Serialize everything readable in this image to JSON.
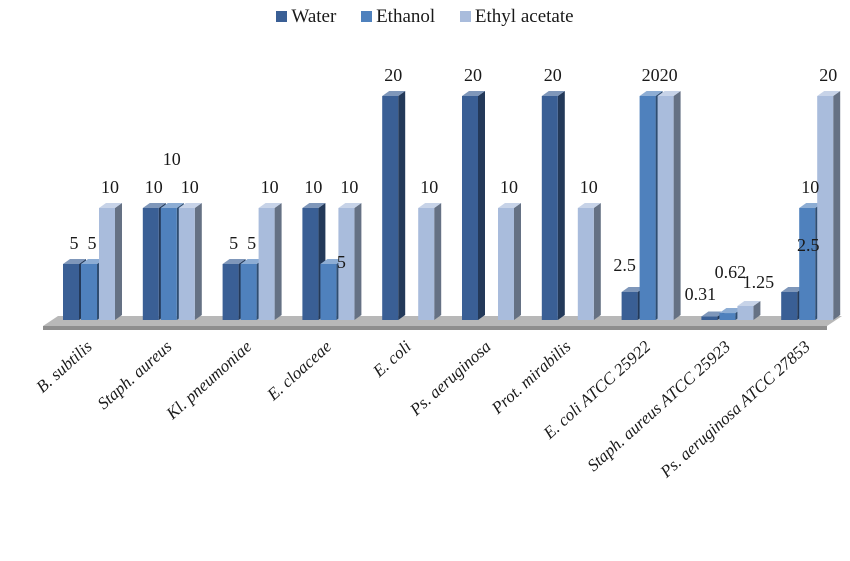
{
  "chart_data": {
    "type": "bar",
    "categories": [
      "B. subtilis",
      "Staph. aureus",
      "Kl. pneumoniae",
      "E. cloaceae",
      "E. coli",
      "Ps. aeruginosa",
      "Prot. mirabilis",
      "E. coli ATCC 25922",
      "Staph. aureus ATCC 25923",
      "Ps. aeruginosa ATCC 27853"
    ],
    "series": [
      {
        "name": "Water",
        "color": "#3a5f95",
        "values": [
          5,
          10,
          5,
          10,
          20,
          20,
          20,
          2.5,
          0.31,
          2.5
        ]
      },
      {
        "name": "Ethanol",
        "color": "#4f81bd",
        "values": [
          5,
          10,
          5,
          5,
          null,
          null,
          null,
          20,
          0.62,
          10
        ]
      },
      {
        "name": "Ethyl acetate",
        "color": "#a9bcdc",
        "values": [
          10,
          10,
          10,
          10,
          10,
          10,
          10,
          20,
          1.25,
          20
        ]
      }
    ],
    "data_labels": [
      [
        "5",
        "5",
        "10"
      ],
      [
        "10",
        "10",
        "10"
      ],
      [
        "5",
        "5",
        "10"
      ],
      [
        "10",
        "5",
        "10"
      ],
      [
        "20",
        "",
        "10"
      ],
      [
        "20",
        "",
        "10"
      ],
      [
        "20",
        "",
        "10"
      ],
      [
        "2.5",
        "20",
        "20"
      ],
      [
        "0.31",
        "0.62",
        "1.25"
      ],
      [
        "2.5",
        "10",
        "20"
      ]
    ],
    "ylim": [
      0,
      20
    ],
    "grid": false,
    "legend_position": "top",
    "style": "3d-column"
  }
}
